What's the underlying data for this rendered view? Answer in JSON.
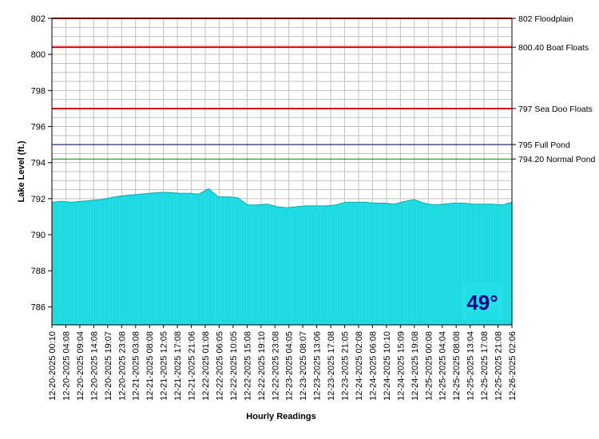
{
  "chart_data": {
    "type": "area",
    "xlabel": "Hourly Readings",
    "ylabel": "Lake Level (ft.)",
    "ylim": [
      785.0,
      802.0
    ],
    "yticks": [
      786,
      788,
      790,
      792,
      794,
      796,
      798,
      800,
      802
    ],
    "grid": true,
    "x_tick_labels": [
      "12-20-2025 00:10",
      "12-20-2025 04:08",
      "12-20-2025 09:04",
      "12-20-2025 14:08",
      "12-20-2025 19:07",
      "12-20-2025 23:08",
      "12-21-2025 03:08",
      "12-21-2025 08:08",
      "12-21-2025 12:05",
      "12-21-2025 17:08",
      "12-21-2025 21:06",
      "12-22-2025 01:08",
      "12-22-2025 06:05",
      "12-22-2025 10:05",
      "12-22-2025 15:08",
      "12-22-2025 19:10",
      "12-22-2025 23:08",
      "12-23-2025 04:05",
      "12-23-2025 08:07",
      "12-23-2025 13:06",
      "12-23-2025 17:08",
      "12-23-2025 21:05",
      "12-24-2025 02:08",
      "12-24-2025 06:08",
      "12-24-2025 10:10",
      "12-24-2025 15:09",
      "12-24-2025 19:08",
      "12-25-2025 00:08",
      "12-25-2025 04:04",
      "12-25-2025 08:08",
      "12-25-2025 13:04",
      "12-25-2025 17:08",
      "12-25-2025 21:08",
      "12-26-2025 02:06"
    ],
    "series": [
      {
        "color": "#22e0e6",
        "values": [
          791.8,
          791.85,
          791.8,
          791.85,
          791.9,
          791.95,
          792.05,
          792.15,
          792.2,
          792.25,
          792.3,
          792.35,
          792.35,
          792.3,
          792.3,
          792.25,
          792.55,
          792.1,
          792.1,
          792.05,
          791.65,
          791.65,
          791.7,
          791.55,
          791.5,
          791.55,
          791.6,
          791.6,
          791.6,
          791.65,
          791.8,
          791.8,
          791.8,
          791.75,
          791.75,
          791.7,
          791.85,
          791.95,
          791.75,
          791.65,
          791.7,
          791.75,
          791.75,
          791.7,
          791.7,
          791.7,
          791.65,
          791.8
        ]
      }
    ],
    "reference_lines": [
      {
        "value": 802.0,
        "label": "802 Floodplain",
        "color": "#e00000"
      },
      {
        "value": 800.4,
        "label": "800.40 Boat Floats",
        "color": "#e00000"
      },
      {
        "value": 797.0,
        "label": "797 Sea Doo Floats",
        "color": "#e00000"
      },
      {
        "value": 795.0,
        "label": "795 Full Pond",
        "color": "#000080"
      },
      {
        "value": 794.2,
        "label": "794.20 Normal Pond",
        "color": "#008000"
      }
    ],
    "annotation": {
      "text": "49°",
      "color": "#00008b",
      "background": "#22e0e6"
    }
  }
}
